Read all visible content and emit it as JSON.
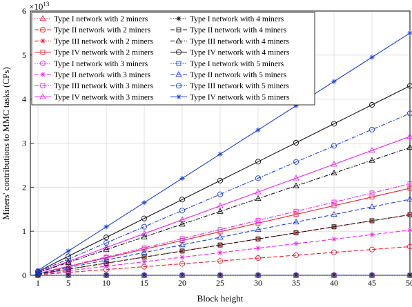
{
  "chart_data": {
    "type": "line",
    "xlabel": "Block height",
    "ylabel": "Miners' contributions to MMC tasks (CPs)",
    "y_multiplier_label": "×10",
    "y_multiplier_exponent": "13",
    "xlim": [
      0,
      50
    ],
    "ylim": [
      0,
      6
    ],
    "x_ticks": [
      1,
      5,
      10,
      15,
      20,
      25,
      30,
      35,
      40,
      45,
      50
    ],
    "y_ticks": [
      0,
      1,
      2,
      3,
      4,
      5,
      6
    ],
    "grid": true,
    "legend_placement": "top-left, two columns",
    "x": [
      1,
      5,
      10,
      15,
      20,
      25,
      30,
      35,
      40,
      45,
      50
    ],
    "series": [
      {
        "name": "Type I network with 2 miners",
        "color": "#e8202a",
        "dash": "dotted",
        "marker": "triangle",
        "values": [
          0,
          0,
          0,
          0,
          0,
          0,
          0,
          0,
          0,
          0,
          0
        ]
      },
      {
        "name": "Type II network with 2 miners",
        "color": "#e8202a",
        "dash": "dashed",
        "marker": "circle",
        "values": [
          0.013,
          0.065,
          0.13,
          0.195,
          0.26,
          0.325,
          0.39,
          0.455,
          0.52,
          0.585,
          0.65
        ]
      },
      {
        "name": "Type III network with 2 miners",
        "color": "#e8202a",
        "dash": "dashdot",
        "marker": "asterisk",
        "values": [
          0.0275,
          0.1375,
          0.275,
          0.4125,
          0.55,
          0.6875,
          0.825,
          0.9625,
          1.1,
          1.2375,
          1.375
        ]
      },
      {
        "name": "Type IV network with 2 miners",
        "color": "#e8202a",
        "dash": "solid",
        "marker": "square",
        "values": [
          0.0395,
          0.1975,
          0.395,
          0.5925,
          0.79,
          0.9875,
          1.185,
          1.3825,
          1.58,
          1.7775,
          1.975
        ]
      },
      {
        "name": "Type I network with 3 miners",
        "color": "#ee22ee",
        "dash": "dotted",
        "marker": "circle",
        "values": [
          0,
          0,
          0,
          0,
          0,
          0,
          0,
          0,
          0,
          0,
          0
        ]
      },
      {
        "name": "Type II network with 3 miners",
        "color": "#ee22ee",
        "dash": "dashed",
        "marker": "asterisk",
        "values": [
          0.0205,
          0.1025,
          0.205,
          0.3075,
          0.41,
          0.5125,
          0.615,
          0.7175,
          0.82,
          0.9225,
          1.025
        ]
      },
      {
        "name": "Type III network with 3 miners",
        "color": "#ee22ee",
        "dash": "dashdot",
        "marker": "square",
        "values": [
          0.0415,
          0.2075,
          0.415,
          0.6225,
          0.83,
          1.0375,
          1.245,
          1.4525,
          1.66,
          1.8675,
          2.075
        ]
      },
      {
        "name": "Type IV network with 3 miners",
        "color": "#ee22ee",
        "dash": "solid",
        "marker": "triangle",
        "values": [
          0.063,
          0.315,
          0.63,
          0.945,
          1.26,
          1.575,
          1.89,
          2.205,
          2.52,
          2.835,
          3.15
        ]
      },
      {
        "name": "Type I network with 4 miners",
        "color": "#111111",
        "dash": "dotted",
        "marker": "asterisk",
        "values": [
          0,
          0,
          0,
          0,
          0,
          0,
          0,
          0,
          0,
          0,
          0
        ]
      },
      {
        "name": "Type II network with 4 miners",
        "color": "#111111",
        "dash": "dashed",
        "marker": "square",
        "values": [
          0.0275,
          0.1375,
          0.275,
          0.4125,
          0.55,
          0.6875,
          0.825,
          0.9625,
          1.1,
          1.2375,
          1.375
        ]
      },
      {
        "name": "Type III network with 4 miners",
        "color": "#111111",
        "dash": "dashdot",
        "marker": "triangle",
        "values": [
          0.058,
          0.29,
          0.58,
          0.87,
          1.16,
          1.45,
          1.74,
          2.03,
          2.32,
          2.61,
          2.9
        ]
      },
      {
        "name": "Type IV network with 4 miners",
        "color": "#111111",
        "dash": "solid",
        "marker": "circle",
        "values": [
          0.086,
          0.43,
          0.86,
          1.29,
          1.72,
          2.15,
          2.58,
          3.01,
          3.44,
          3.87,
          4.3
        ]
      },
      {
        "name": "Type I network with 5 miners",
        "color": "#1a3fdc",
        "dash": "dotted",
        "marker": "square",
        "values": [
          0,
          0,
          0,
          0,
          0,
          0,
          0,
          0,
          0,
          0,
          0
        ]
      },
      {
        "name": "Type II network with 5 miners",
        "color": "#1a3fdc",
        "dash": "dashed",
        "marker": "triangle",
        "values": [
          0.0345,
          0.1725,
          0.345,
          0.5175,
          0.69,
          0.8625,
          1.035,
          1.2075,
          1.38,
          1.5525,
          1.725
        ]
      },
      {
        "name": "Type III network with 5 miners",
        "color": "#1a3fdc",
        "dash": "dashdot",
        "marker": "circle",
        "values": [
          0.0735,
          0.3675,
          0.735,
          1.1025,
          1.47,
          1.8375,
          2.205,
          2.5725,
          2.94,
          3.3075,
          3.675
        ]
      },
      {
        "name": "Type IV network with 5 miners",
        "color": "#1a3fdc",
        "dash": "solid",
        "marker": "asterisk",
        "values": [
          0.11,
          0.55,
          1.1,
          1.65,
          2.2,
          2.75,
          3.3,
          3.85,
          4.4,
          4.95,
          5.5
        ]
      }
    ]
  }
}
